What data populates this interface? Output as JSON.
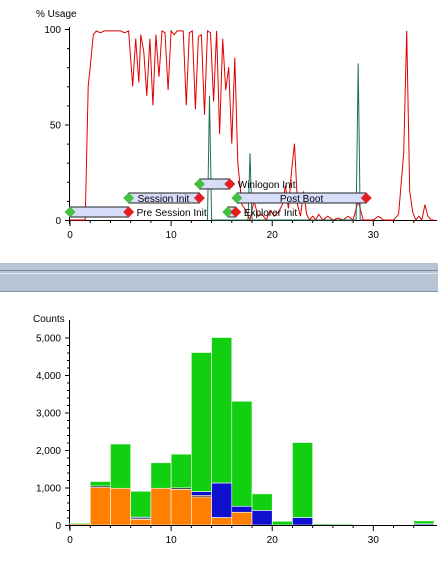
{
  "chart_data": [
    {
      "type": "line",
      "ylabel": "% Usage",
      "xlim": [
        0,
        36
      ],
      "ylim": [
        0,
        100
      ],
      "x_ticks": [
        "0",
        "10",
        "20",
        "30"
      ],
      "y_ticks": [
        "0",
        "50",
        "100"
      ],
      "grid": false,
      "series": [
        {
          "color": "#e00000",
          "x": [
            0,
            1.5,
            1.8,
            2.0,
            2.3,
            2.6,
            3.0,
            3.4,
            3.8,
            4.2,
            4.6,
            5.0,
            5.4,
            5.8,
            6.2,
            6.5,
            6.8,
            7.0,
            7.3,
            7.6,
            7.9,
            8.2,
            8.5,
            8.8,
            9.1,
            9.4,
            9.7,
            10.0,
            10.3,
            10.6,
            10.9,
            11.2,
            11.5,
            11.8,
            12.1,
            12.4,
            12.7,
            13.0,
            13.3,
            13.6,
            13.9,
            14.2,
            14.5,
            14.8,
            15.1,
            15.4,
            15.7,
            16.0,
            16.3,
            16.6,
            17.0,
            17.4,
            17.8,
            18.2,
            18.6,
            19.0,
            19.4,
            19.8,
            20.2,
            20.6,
            21.0,
            21.3,
            21.6,
            21.9,
            22.2,
            22.5,
            22.8,
            23.1,
            23.4,
            23.7,
            24.0,
            24.3,
            24.6,
            25.0,
            25.5,
            26.0,
            26.5,
            27.0,
            27.5,
            28.0,
            28.5,
            29.0,
            29.5,
            30.0,
            30.5,
            31.0,
            31.5,
            32.0,
            32.5,
            33.0,
            33.3,
            33.6,
            33.9,
            34.2,
            34.5,
            34.8,
            35.1,
            35.4,
            35.7,
            36.0
          ],
          "y": [
            0,
            0,
            70,
            80,
            97,
            99,
            98,
            99,
            99,
            99,
            99,
            99,
            98,
            99,
            70,
            95,
            72,
            97,
            88,
            65,
            95,
            60,
            97,
            75,
            99,
            98,
            68,
            99,
            97,
            99,
            99,
            99,
            60,
            98,
            99,
            58,
            96,
            97,
            55,
            99,
            98,
            62,
            99,
            45,
            95,
            68,
            80,
            40,
            85,
            30,
            8,
            5,
            0,
            10,
            2,
            3,
            0,
            5,
            2,
            4,
            8,
            18,
            6,
            25,
            40,
            8,
            2,
            15,
            3,
            0,
            2,
            0,
            3,
            0,
            2,
            0,
            1,
            0,
            2,
            0,
            10,
            0,
            0,
            0,
            2,
            0,
            0,
            0,
            3,
            35,
            99,
            15,
            4,
            0,
            2,
            0,
            8,
            2,
            0,
            0
          ]
        },
        {
          "color": "#1f6e5a",
          "x": [
            13.6,
            13.8,
            14.0,
            14.2,
            17.6,
            17.8,
            18.0,
            18.2,
            28.3,
            28.5,
            28.7,
            28.9
          ],
          "y": [
            0,
            65,
            0,
            0,
            0,
            35,
            0,
            0,
            0,
            82,
            0,
            0
          ]
        }
      ],
      "annotations": [
        {
          "label": "Pre Session Init",
          "x_start": 0,
          "x_end": 5.8,
          "row": 0
        },
        {
          "label": "Session Init",
          "x_start": 5.8,
          "x_end": 12.8,
          "row": 1
        },
        {
          "label": "Winlogon Init",
          "x_start": 12.8,
          "x_end": 15.8,
          "row": 2
        },
        {
          "label": "Post Boot",
          "x_start": 16.5,
          "x_end": 29.3,
          "row": 1
        },
        {
          "label": "Explorer Init",
          "x_start": 15.6,
          "x_end": 16.4,
          "row": 0
        }
      ],
      "annotation_colors": {
        "start_marker": "#44c044",
        "end_marker": "#e02020",
        "bar_fill": "#d8ddfa",
        "bar_stroke": "#222222"
      }
    },
    {
      "type": "bar",
      "stacked": true,
      "ylabel": "Counts",
      "xlim": [
        0,
        36
      ],
      "ylim": [
        0,
        5200
      ],
      "x_ticks": [
        "0",
        "10",
        "20",
        "30"
      ],
      "y_ticks": [
        "0",
        "1,000",
        "2,000",
        "3,000",
        "4,000",
        "5,000"
      ],
      "grid": false,
      "bin_width": 2,
      "x": [
        1,
        3,
        5,
        7,
        9,
        11,
        13,
        15,
        17,
        19,
        21,
        23,
        25,
        27,
        29,
        31,
        33,
        35
      ],
      "series": [
        {
          "color": "#ff8000",
          "values": [
            40,
            1000,
            980,
            150,
            980,
            950,
            750,
            200,
            340,
            0,
            0,
            0,
            0,
            0,
            0,
            0,
            0,
            0
          ]
        },
        {
          "color": "#000000",
          "values": [
            0,
            40,
            0,
            40,
            0,
            40,
            40,
            0,
            0,
            0,
            0,
            0,
            0,
            0,
            0,
            0,
            0,
            0
          ]
        },
        {
          "color": "#1010d0",
          "values": [
            0,
            0,
            0,
            20,
            0,
            0,
            100,
            920,
            160,
            390,
            0,
            200,
            0,
            0,
            0,
            0,
            0,
            30
          ]
        },
        {
          "color": "#10d010",
          "values": [
            20,
            120,
            1180,
            690,
            680,
            900,
            3710,
            3880,
            2800,
            440,
            100,
            2000,
            30,
            20,
            0,
            0,
            0,
            80
          ]
        }
      ]
    }
  ]
}
